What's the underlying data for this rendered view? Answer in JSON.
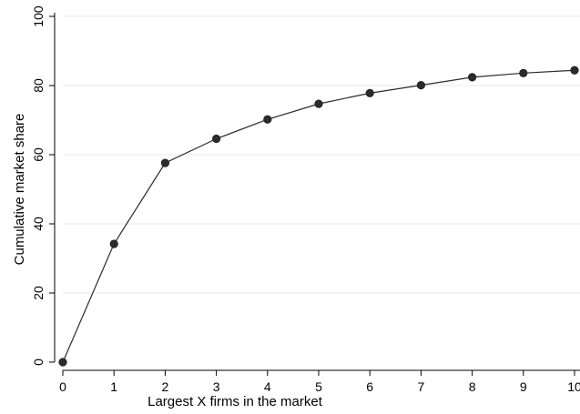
{
  "chart_data": {
    "type": "line",
    "title": "",
    "xlabel": "Largest X firms in the market",
    "ylabel": "Cumulative market share",
    "xlim": [
      0,
      10
    ],
    "ylim": [
      0,
      100
    ],
    "x_ticks": [
      0,
      1,
      2,
      3,
      4,
      5,
      6,
      7,
      8,
      9,
      10
    ],
    "y_ticks": [
      0,
      20,
      40,
      60,
      80,
      100
    ],
    "grid": true,
    "legend": "none",
    "series": [
      {
        "x": [
          0,
          1,
          2,
          3,
          4,
          5,
          6,
          7,
          8,
          9,
          10
        ],
        "values": [
          0,
          34.2,
          57.6,
          64.6,
          70.2,
          74.7,
          77.8,
          80.1,
          82.4,
          83.6,
          84.4
        ],
        "color": "#2b2b2b",
        "marker": "circle"
      }
    ]
  }
}
